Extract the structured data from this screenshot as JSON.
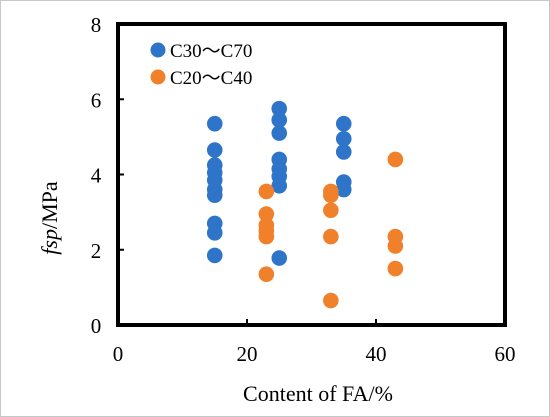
{
  "chart_data": {
    "type": "scatter",
    "title": "",
    "xlabel": "Content of FA/%",
    "ylabel_italic": "fsp",
    "ylabel_rest": "/MPa",
    "xlim": [
      0,
      60
    ],
    "ylim": [
      0,
      8
    ],
    "x_ticks": [
      "0",
      "20",
      "40",
      "60"
    ],
    "y_ticks": [
      "0",
      "2",
      "4",
      "6",
      "8"
    ],
    "grid": false,
    "legend_position": "top-left",
    "series": [
      {
        "name": "C30～C70",
        "color": "#2e75c9",
        "points": [
          [
            15,
            5.35
          ],
          [
            15,
            4.65
          ],
          [
            15,
            4.25
          ],
          [
            15,
            4.05
          ],
          [
            15,
            3.85
          ],
          [
            15,
            3.6
          ],
          [
            15,
            3.45
          ],
          [
            15,
            2.7
          ],
          [
            15,
            2.45
          ],
          [
            15,
            1.85
          ],
          [
            25,
            5.75
          ],
          [
            25,
            5.45
          ],
          [
            25,
            5.1
          ],
          [
            25,
            4.4
          ],
          [
            25,
            4.15
          ],
          [
            25,
            3.95
          ],
          [
            25,
            3.7
          ],
          [
            25,
            1.78
          ],
          [
            35,
            5.35
          ],
          [
            35,
            4.95
          ],
          [
            35,
            4.6
          ],
          [
            35,
            3.8
          ],
          [
            35,
            3.6
          ]
        ]
      },
      {
        "name": "C20～C40",
        "color": "#f0812a",
        "points": [
          [
            23,
            3.55
          ],
          [
            23,
            2.95
          ],
          [
            23,
            2.65
          ],
          [
            23,
            2.5
          ],
          [
            23,
            2.35
          ],
          [
            23,
            1.35
          ],
          [
            33,
            3.55
          ],
          [
            33,
            3.45
          ],
          [
            33,
            3.05
          ],
          [
            33,
            2.35
          ],
          [
            33,
            0.65
          ],
          [
            43,
            4.4
          ],
          [
            43,
            2.35
          ],
          [
            43,
            2.1
          ],
          [
            43,
            1.5
          ]
        ]
      }
    ]
  }
}
